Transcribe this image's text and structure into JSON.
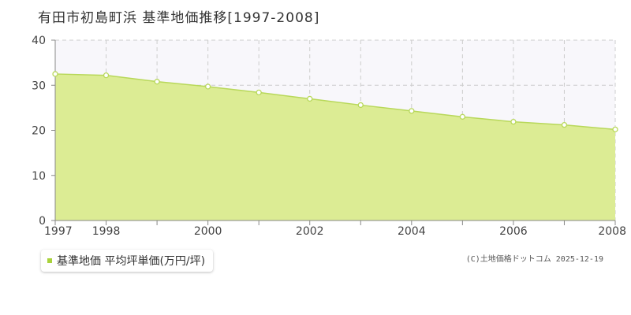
{
  "title": "有田市初島町浜 基準地価推移[1997-2008]",
  "legend_label": "基準地価 平均坪単価(万円/坪)",
  "credit": "(C)土地価格ドットコム 2025-12-19",
  "colors": {
    "area_fill": "#dcec94",
    "line": "#b8d85a",
    "marker_stroke": "#b8d85a",
    "marker_fill": "#ffffff",
    "legend_swatch": "#a9d23c",
    "grid": "#cccccc",
    "plot_bg_upper": "#f8f7fb",
    "axis": "#888888"
  },
  "chart_data": {
    "type": "area",
    "x": [
      1997,
      1998,
      1999,
      2000,
      2001,
      2002,
      2003,
      2004,
      2005,
      2006,
      2007,
      2008
    ],
    "series": [
      {
        "name": "基準地価 平均坪単価(万円/坪)",
        "values": [
          32.5,
          32.2,
          30.8,
          29.7,
          28.4,
          27.0,
          25.6,
          24.3,
          23.0,
          21.9,
          21.2,
          20.2
        ]
      }
    ],
    "x_tick_labels": [
      "1997",
      "1998",
      "2000",
      "2002",
      "2004",
      "2006",
      "2008"
    ],
    "y_ticks": [
      0,
      10,
      20,
      30,
      40
    ],
    "xlim": [
      1997,
      2008
    ],
    "ylim": [
      0,
      40
    ],
    "grid": true,
    "legend_position": "bottom-left"
  }
}
